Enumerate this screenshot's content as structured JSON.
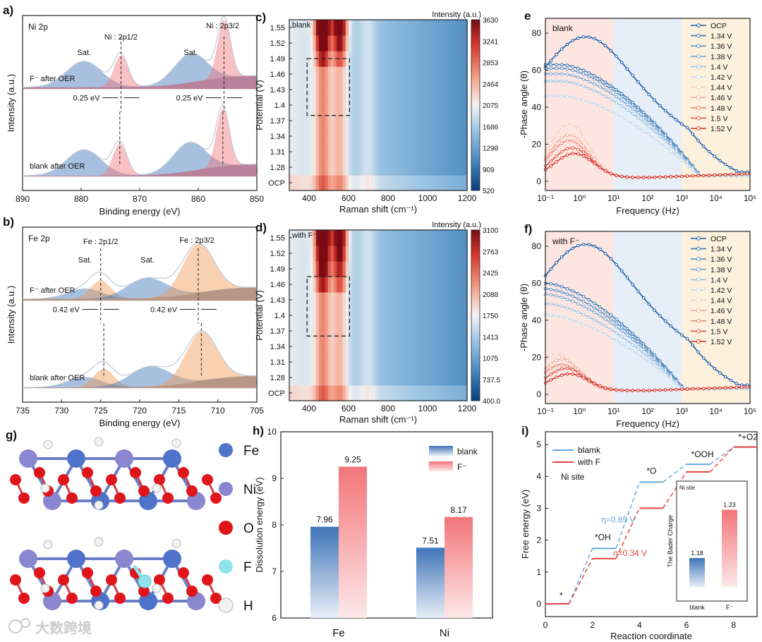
{
  "watermark": "大数跨境",
  "chart_data": [
    {
      "panel": "a)",
      "type": "line",
      "element_label": "Ni 2p",
      "xlabel": "Binding energy (eV)",
      "ylabel": "Intensity (a.u.)",
      "xlim": [
        890,
        850
      ],
      "xticks": [
        890,
        880,
        870,
        860,
        850
      ],
      "x_reversed": true,
      "series": [
        {
          "name": "F⁻ after OER",
          "peaks": [
            {
              "label": "Sat.",
              "center": 879.5
            },
            {
              "label": "Ni : 2p1/2",
              "center": 873.2
            },
            {
              "label": "Sat.",
              "center": 861.3
            },
            {
              "label": "Ni : 2p3/2",
              "center": 855.6
            }
          ]
        },
        {
          "name": "blank after OER",
          "peaks": [
            {
              "center": 879.5
            },
            {
              "center": 873.4
            },
            {
              "center": 861.5
            },
            {
              "center": 855.8
            }
          ]
        }
      ],
      "annotations": [
        {
          "peak_label": "Ni : 2p1/2",
          "shift": "0.25 eV"
        },
        {
          "peak_label": "Ni : 2p3/2",
          "shift": "0.25 eV"
        }
      ]
    },
    {
      "panel": "b)",
      "type": "line",
      "element_label": "Fe 2p",
      "xlabel": "Binding energy (eV)",
      "ylabel": "Intensity (a.u.)",
      "xlim": [
        735,
        705
      ],
      "xticks": [
        735,
        730,
        725,
        720,
        715,
        710,
        705
      ],
      "x_reversed": true,
      "series": [
        {
          "name": "F⁻ after OER",
          "peaks": [
            {
              "label": "Sat.",
              "center": 727.0
            },
            {
              "label": "Fe : 2p1/2",
              "center": 725.0
            },
            {
              "label": "Sat.",
              "center": 719.0
            },
            {
              "label": "Fe : 2p3/2",
              "center": 712.5
            }
          ]
        },
        {
          "name": "blank after OER",
          "peaks": [
            {
              "center": 727.0
            },
            {
              "center": 724.6
            },
            {
              "center": 718.6
            },
            {
              "center": 712.1
            }
          ]
        }
      ],
      "annotations": [
        {
          "peak_label": "Fe : 2p1/2",
          "shift": "0.42 eV"
        },
        {
          "peak_label": "Fe : 2p3/2",
          "shift": "0.42 eV"
        }
      ]
    },
    {
      "panel": "c)",
      "type": "heatmap",
      "label": "blank",
      "xlabel": "Raman shift (cm⁻¹)",
      "ylabel": "Potential (V)",
      "colorbar_title": "Intensity (a.u.)",
      "xlim": [
        300,
        1200
      ],
      "xticks": [
        400,
        600,
        800,
        1000,
        1200
      ],
      "yticks": [
        "OCP",
        "1.28",
        "1.31",
        "1.34",
        "1.37",
        "1.4",
        "1.43",
        "1.46",
        "1.49",
        "1.52",
        "1.55"
      ],
      "colorbar_ticks": [
        "3630",
        "3241",
        "2853",
        "2464",
        "2075",
        "1686",
        "1298",
        "909",
        "520"
      ],
      "bands": [
        {
          "center": 470,
          "strength": 0.95
        },
        {
          "center": 555,
          "strength": 0.75
        },
        {
          "center": 700,
          "strength": 0.3
        }
      ],
      "onset_potential": 1.49,
      "dashed_box": {
        "x": [
          390,
          605
        ],
        "y": [
          1.38,
          1.49
        ]
      }
    },
    {
      "panel": "d)",
      "type": "heatmap",
      "label": "with F⁻",
      "xlabel": "Raman shift (cm⁻¹)",
      "ylabel": "Potential (V)",
      "colorbar_title": "Intensity (a.u.)",
      "xlim": [
        300,
        1200
      ],
      "xticks": [
        400,
        600,
        800,
        1000,
        1200
      ],
      "yticks": [
        "OCP",
        "1.28",
        "1.31",
        "1.34",
        "1.37",
        "1.4",
        "1.43",
        "1.46",
        "1.49",
        "1.52",
        "1.55"
      ],
      "colorbar_ticks": [
        "3100",
        "2763",
        "2425",
        "2088",
        "1750",
        "1413",
        "1075",
        "737.5",
        "400.0"
      ],
      "bands": [
        {
          "center": 470,
          "strength": 0.95
        },
        {
          "center": 555,
          "strength": 0.75
        },
        {
          "center": 700,
          "strength": 0.3
        }
      ],
      "onset_potential": 1.46,
      "dashed_box": {
        "x": [
          390,
          605
        ],
        "y": [
          1.36,
          1.475
        ]
      }
    },
    {
      "panel": "e",
      "type": "line",
      "label": "blank",
      "xlabel": "Frequency (Hz)",
      "ylabel": "-Phase angle (θ)",
      "x_scale": "log",
      "xticks": [
        "10⁻¹",
        "10⁰",
        "10¹",
        "10²",
        "10³",
        "10⁴",
        "10⁵"
      ],
      "xlim": [
        0.1,
        100000
      ],
      "ylim": [
        -5,
        88
      ],
      "yticks": [
        0,
        20,
        40,
        60,
        80
      ],
      "shaded_regions": [
        "pink",
        "lightblue",
        "lightorange"
      ],
      "series": [
        {
          "name": "OCP",
          "color": "#1a5ca8",
          "peak": 78,
          "peak_freq": 1.5
        },
        {
          "name": "1.34 V",
          "color": "#3b7ab8",
          "peak": 63,
          "peak_freq": 0.3
        },
        {
          "name": "1.36 V",
          "color": "#5a90c4",
          "peak": 61,
          "peak_freq": 0.3
        },
        {
          "name": "1.38 V",
          "color": "#79a8d2",
          "peak": 58,
          "peak_freq": 0.3
        },
        {
          "name": "1.4 V",
          "color": "#9dc1e0",
          "peak": 54,
          "peak_freq": 0.3
        },
        {
          "name": "1.42 V",
          "color": "#c2d9ec",
          "peak": 46,
          "peak_freq": 0.3
        },
        {
          "name": "1.44 V",
          "color": "#f4d0c6",
          "peak": 29,
          "peak_freq": 0.5
        },
        {
          "name": "1.46 V",
          "color": "#f2b0a2",
          "peak": 23,
          "peak_freq": 0.5
        },
        {
          "name": "1.48 V",
          "color": "#ec8a7a",
          "peak": 20,
          "peak_freq": 0.5
        },
        {
          "name": "1.5 V",
          "color": "#e25a4c",
          "peak": 16,
          "peak_freq": 0.6
        },
        {
          "name": "1.52 V",
          "color": "#d83028",
          "peak": 13,
          "peak_freq": 0.7
        }
      ]
    },
    {
      "panel": "f)",
      "type": "line",
      "label": "with F⁻",
      "xlabel": "Frequency (Hz)",
      "ylabel": "-Phase angle (θ)",
      "x_scale": "log",
      "xticks": [
        "10⁻¹",
        "10⁰",
        "10¹",
        "10²",
        "10³",
        "10⁴",
        "10⁵"
      ],
      "xlim": [
        0.1,
        100000
      ],
      "ylim": [
        -5,
        88
      ],
      "yticks": [
        0,
        20,
        40,
        60,
        80
      ],
      "shaded_regions": [
        "pink",
        "lightblue",
        "lightorange"
      ],
      "series": [
        {
          "name": "OCP",
          "color": "#1a5ca8",
          "peak": 81,
          "peak_freq": 1.5
        },
        {
          "name": "1.34 V",
          "color": "#3b7ab8",
          "peak": 60,
          "peak_freq": 0.1
        },
        {
          "name": "1.36 V",
          "color": "#5a90c4",
          "peak": 57,
          "peak_freq": 0.1
        },
        {
          "name": "1.38 V",
          "color": "#79a8d2",
          "peak": 54,
          "peak_freq": 0.1
        },
        {
          "name": "1.4 V",
          "color": "#9dc1e0",
          "peak": 49,
          "peak_freq": 0.1
        },
        {
          "name": "1.42 V",
          "color": "#c2d9ec",
          "peak": 43,
          "peak_freq": 0.1
        },
        {
          "name": "1.44 V",
          "color": "#f4d0c6",
          "peak": 20,
          "peak_freq": 0.2
        },
        {
          "name": "1.46 V",
          "color": "#f2b0a2",
          "peak": 17,
          "peak_freq": 0.3
        },
        {
          "name": "1.48 V",
          "color": "#ec8a7a",
          "peak": 14,
          "peak_freq": 0.3
        },
        {
          "name": "1.5 V",
          "color": "#e25a4c",
          "peak": 12,
          "peak_freq": 0.4
        },
        {
          "name": "1.52 V",
          "color": "#d83028",
          "peak": 9,
          "peak_freq": 0.5
        }
      ]
    },
    {
      "panel": "g)",
      "type": "structure",
      "legend": [
        {
          "label": "Fe",
          "color": "#4f73c9"
        },
        {
          "label": "Ni",
          "color": "#8a86cf"
        },
        {
          "label": "O",
          "color": "#e0151a"
        },
        {
          "label": "F",
          "color": "#8fe3ea"
        },
        {
          "label": "H",
          "color": "#f2f2f2"
        }
      ]
    },
    {
      "panel": "h)",
      "type": "bar",
      "ylabel": "Dissolution energy (eV)",
      "ylim": [
        6,
        10
      ],
      "yticks": [
        6,
        7,
        8,
        9,
        10
      ],
      "categories": [
        "Fe",
        "Ni"
      ],
      "series": [
        {
          "name": "blank",
          "color": "#3f74b8",
          "values": [
            7.96,
            7.51
          ]
        },
        {
          "name": "F⁻",
          "color": "#f2757a",
          "values": [
            9.25,
            8.17
          ]
        }
      ]
    },
    {
      "panel": "i)",
      "type": "line",
      "xlabel": "Reaction coordinate",
      "ylabel": "Free energy (eV)",
      "xlim": [
        0,
        9
      ],
      "ylim": [
        -0.4,
        5.4
      ],
      "xticks": [
        0,
        2,
        4,
        6,
        8
      ],
      "yticks": [
        0,
        1,
        2,
        3,
        4,
        5
      ],
      "site_label": "Ni site",
      "step_labels": [
        "*",
        "*OH",
        "*O",
        "*OOH",
        "*+O2"
      ],
      "series": [
        {
          "name": "blamk",
          "color": "#6aa6e0",
          "levels": [
            0.0,
            1.74,
            3.82,
            4.38,
            4.92
          ]
        },
        {
          "name": "with F",
          "color": "#e8423f",
          "levels": [
            0.0,
            1.42,
            3.0,
            4.14,
            4.92
          ]
        }
      ],
      "overpotentials": [
        {
          "series": "blamk",
          "label": "η=0.85 V"
        },
        {
          "series": "with F",
          "label": "η=0.34 V"
        }
      ],
      "inset": {
        "title": "Ni site",
        "ylabel": "The Bader Charge",
        "categories": [
          "blank",
          "F⁻"
        ],
        "values": [
          1.18,
          1.23
        ],
        "colors": [
          "#3f74b8",
          "#f2757a"
        ]
      }
    }
  ]
}
